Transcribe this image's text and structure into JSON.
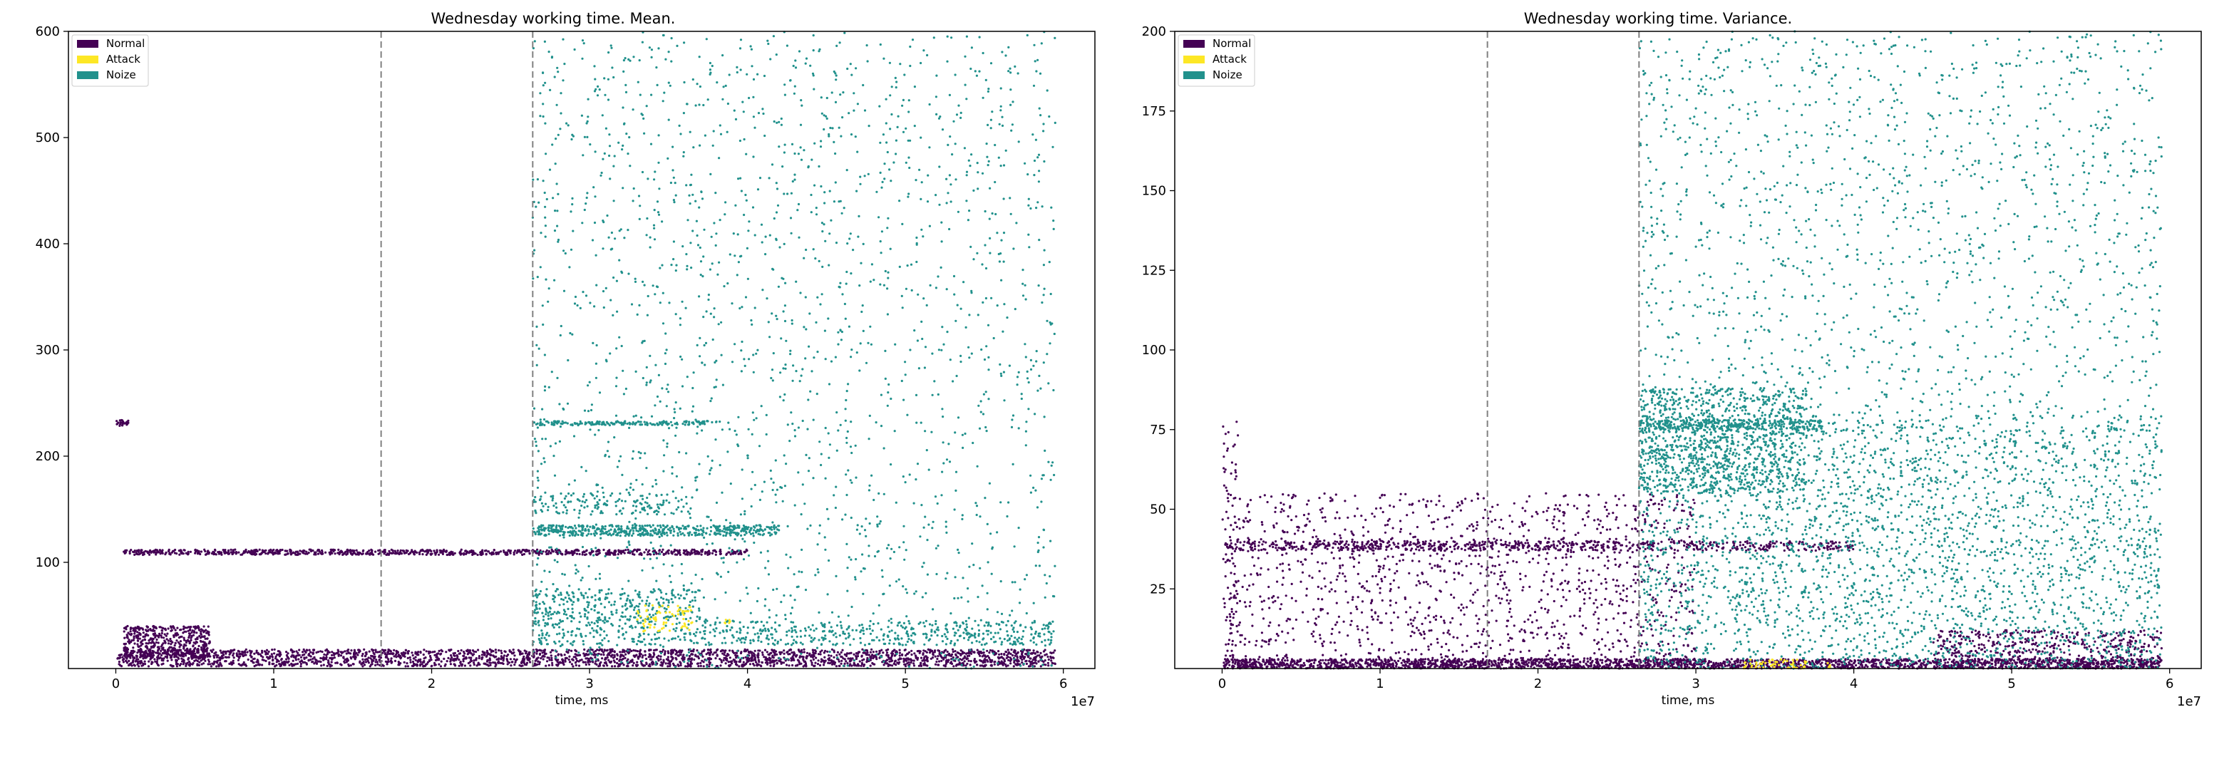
{
  "colors": {
    "normal": "#440154",
    "attack": "#fde725",
    "noize": "#21918c",
    "divider": "#808080"
  },
  "legend": [
    {
      "label": "Normal",
      "color": "#440154"
    },
    {
      "label": "Attack",
      "color": "#fde725"
    },
    {
      "label": "Noize",
      "color": "#21918c"
    }
  ],
  "chart_data": [
    {
      "type": "scatter",
      "title": "Wednesday working time. Mean.",
      "xlabel": "time, ms",
      "ylabel": "",
      "x_offset_text": "1e7",
      "xlim": [
        -3000000,
        62000000
      ],
      "ylim": [
        0,
        600
      ],
      "xticks": [
        0,
        10000000,
        20000000,
        30000000,
        40000000,
        50000000,
        60000000
      ],
      "xtick_labels": [
        "0",
        "1",
        "2",
        "3",
        "4",
        "5",
        "6"
      ],
      "yticks": [
        100,
        200,
        300,
        400,
        500,
        600
      ],
      "ytick_labels": [
        "100",
        "200",
        "300",
        "400",
        "500",
        "600"
      ],
      "vlines": [
        16800000,
        26400000
      ],
      "grid": false,
      "legend_position": "upper left",
      "series": [
        {
          "name": "Normal",
          "color": "#440154",
          "bands": [
            {
              "x": [
                100000,
                59500000
              ],
              "y": [
                2,
                18
              ],
              "points": 2600
            },
            {
              "x": [
                500000,
                6000000
              ],
              "y": [
                10,
                40
              ],
              "points": 500
            },
            {
              "x": [
                500000,
                40000000
              ],
              "y": [
                107,
                112
              ],
              "points": 900
            },
            {
              "x": [
                0,
                800000
              ],
              "y": [
                228,
                234
              ],
              "points": 25
            }
          ]
        },
        {
          "name": "Attack",
          "color": "#fde725",
          "bands": [
            {
              "x": [
                33000000,
                36500000
              ],
              "y": [
                35,
                60
              ],
              "points": 70
            },
            {
              "x": [
                38500000,
                38900000
              ],
              "y": [
                42,
                48
              ],
              "points": 6
            }
          ]
        },
        {
          "name": "Noize",
          "color": "#21918c",
          "bands": [
            {
              "x": [
                26400000,
                59500000
              ],
              "y": [
                0,
                600
              ],
              "points": 2000
            },
            {
              "x": [
                26400000,
                59500000
              ],
              "y": [
                22,
                45
              ],
              "points": 600
            },
            {
              "x": [
                26400000,
                37000000
              ],
              "y": [
                45,
                75
              ],
              "points": 300
            },
            {
              "x": [
                26400000,
                42000000
              ],
              "y": [
                125,
                135
              ],
              "points": 500
            },
            {
              "x": [
                26400000,
                36500000
              ],
              "y": [
                145,
                165
              ],
              "points": 150
            },
            {
              "x": [
                26400000,
                37500000
              ],
              "y": [
                229,
                233
              ],
              "points": 180
            }
          ]
        }
      ]
    },
    {
      "type": "scatter",
      "title": "Wednesday working time. Variance.",
      "xlabel": "time, ms",
      "ylabel": "",
      "x_offset_text": "1e7",
      "xlim": [
        -3000000,
        62000000
      ],
      "ylim": [
        0,
        200
      ],
      "xticks": [
        0,
        10000000,
        20000000,
        30000000,
        40000000,
        50000000,
        60000000
      ],
      "xtick_labels": [
        "0",
        "1",
        "2",
        "3",
        "4",
        "5",
        "6"
      ],
      "yticks": [
        25,
        50,
        75,
        100,
        125,
        150,
        175,
        200
      ],
      "ytick_labels": [
        "25",
        "50",
        "75",
        "100",
        "125",
        "150",
        "175",
        "200"
      ],
      "vlines": [
        16800000,
        26400000
      ],
      "grid": false,
      "legend_position": "upper left",
      "series": [
        {
          "name": "Normal",
          "color": "#440154",
          "bands": [
            {
              "x": [
                100000,
                59500000
              ],
              "y": [
                0,
                3
              ],
              "points": 2200
            },
            {
              "x": [
                200000,
                40000000
              ],
              "y": [
                37,
                40
              ],
              "points": 700
            },
            {
              "x": [
                200000,
                30000000
              ],
              "y": [
                0,
                55
              ],
              "points": 1400
            },
            {
              "x": [
                0,
                1000000
              ],
              "y": [
                0,
                78
              ],
              "points": 60
            },
            {
              "x": [
                45000000,
                59500000
              ],
              "y": [
                0,
                12
              ],
              "points": 500
            }
          ]
        },
        {
          "name": "Attack",
          "color": "#fde725",
          "bands": [
            {
              "x": [
                33000000,
                37000000
              ],
              "y": [
                0,
                3
              ],
              "points": 60
            },
            {
              "x": [
                38300000,
                38700000
              ],
              "y": [
                0,
                2
              ],
              "points": 6
            }
          ]
        },
        {
          "name": "Noize",
          "color": "#21918c",
          "bands": [
            {
              "x": [
                26400000,
                59500000
              ],
              "y": [
                0,
                200
              ],
              "points": 2500
            },
            {
              "x": [
                26400000,
                59500000
              ],
              "y": [
                0,
                80
              ],
              "points": 2000
            },
            {
              "x": [
                26400000,
                37000000
              ],
              "y": [
                55,
                88
              ],
              "points": 1000
            },
            {
              "x": [
                26400000,
                38000000
              ],
              "y": [
                75,
                78
              ],
              "points": 250
            }
          ]
        }
      ]
    }
  ]
}
